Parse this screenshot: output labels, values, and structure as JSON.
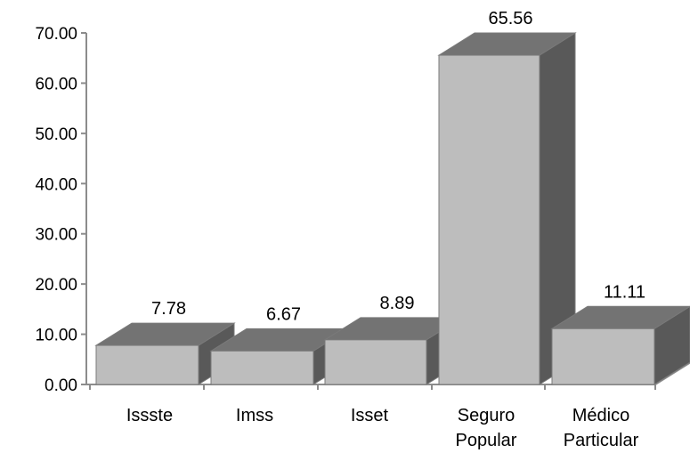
{
  "chart_data": {
    "type": "bar",
    "style": "3d-column",
    "categories": [
      [
        "Issste"
      ],
      [
        "Imss"
      ],
      [
        "Isset"
      ],
      [
        "Seguro",
        "Popular"
      ],
      [
        "Médico",
        "Particular"
      ]
    ],
    "values": [
      7.78,
      6.67,
      8.89,
      65.56,
      11.11
    ],
    "data_labels": [
      "7.78",
      "6.67",
      "8.89",
      "65.56",
      "11.11"
    ],
    "y_ticks": [
      "0.00",
      "10.00",
      "20.00",
      "30.00",
      "40.00",
      "50.00",
      "60.00",
      "70.00"
    ],
    "ylim": [
      0,
      70
    ],
    "title": "",
    "xlabel": "",
    "ylabel": "",
    "grid": false,
    "legend": "none",
    "colors": {
      "bar_front": "#bdbdbd",
      "bar_top": "#737373",
      "bar_side": "#595959",
      "axis": "#8c8c8c",
      "bar_edge": "#7a7a7a"
    }
  }
}
